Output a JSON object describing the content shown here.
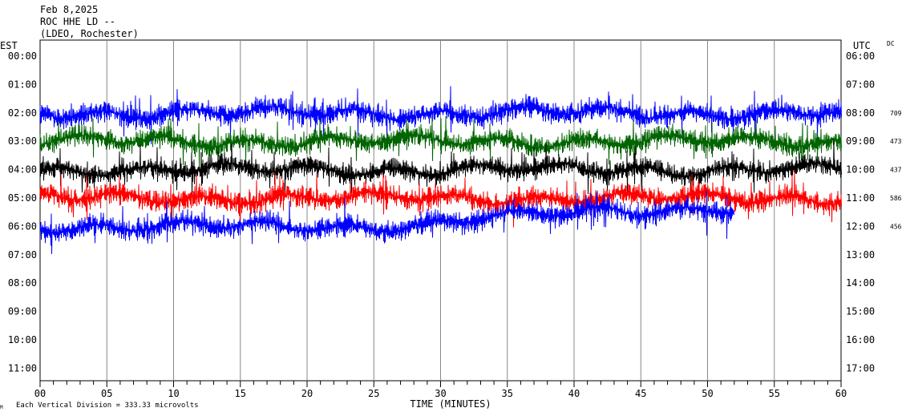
{
  "header": {
    "date": "Feb 8,2025",
    "station": "ROC HHE LD --",
    "network": "(LDEO, Rochester)"
  },
  "chart_data": {
    "type": "line",
    "xlabel": "TIME (MINUTES)",
    "x_ticks": [
      "00",
      "05",
      "10",
      "15",
      "20",
      "25",
      "30",
      "35",
      "40",
      "45",
      "50",
      "55",
      "60"
    ],
    "x_range": [
      0,
      60
    ],
    "left_axis_title": "EST",
    "right_axis_title": "UTC",
    "dc_label": "DC",
    "left_hours": [
      "00:00",
      "01:00",
      "02:00",
      "03:00",
      "04:00",
      "05:00",
      "06:00",
      "07:00",
      "08:00",
      "09:00",
      "10:00",
      "11:00"
    ],
    "right_hours": [
      "06:00",
      "07:00",
      "08:00",
      "09:00",
      "10:00",
      "11:00",
      "12:00",
      "13:00",
      "14:00",
      "15:00",
      "16:00",
      "17:00"
    ],
    "dc_offsets": [
      {
        "row": 2,
        "value": "709"
      },
      {
        "row": 3,
        "value": "473"
      },
      {
        "row": 4,
        "value": "437"
      },
      {
        "row": 5,
        "value": "586"
      },
      {
        "row": 6,
        "value": "456"
      }
    ],
    "footer_note": "Each Vertical Division =  333.33 microvolts",
    "footer_mark": "M",
    "grid": true,
    "series": [
      {
        "row": 2,
        "color": "#0000ff",
        "end_minute": 60,
        "offset": 0
      },
      {
        "row": 3,
        "color": "#006400",
        "end_minute": 60,
        "offset": 0
      },
      {
        "row": 4,
        "color": "#000000",
        "end_minute": 60,
        "offset": 0
      },
      {
        "row": 5,
        "color": "#ff0000",
        "end_minute": 60,
        "offset": 0
      },
      {
        "row": 6,
        "color": "#0000ff",
        "end_minute": 52,
        "offset": 0.6
      }
    ]
  }
}
